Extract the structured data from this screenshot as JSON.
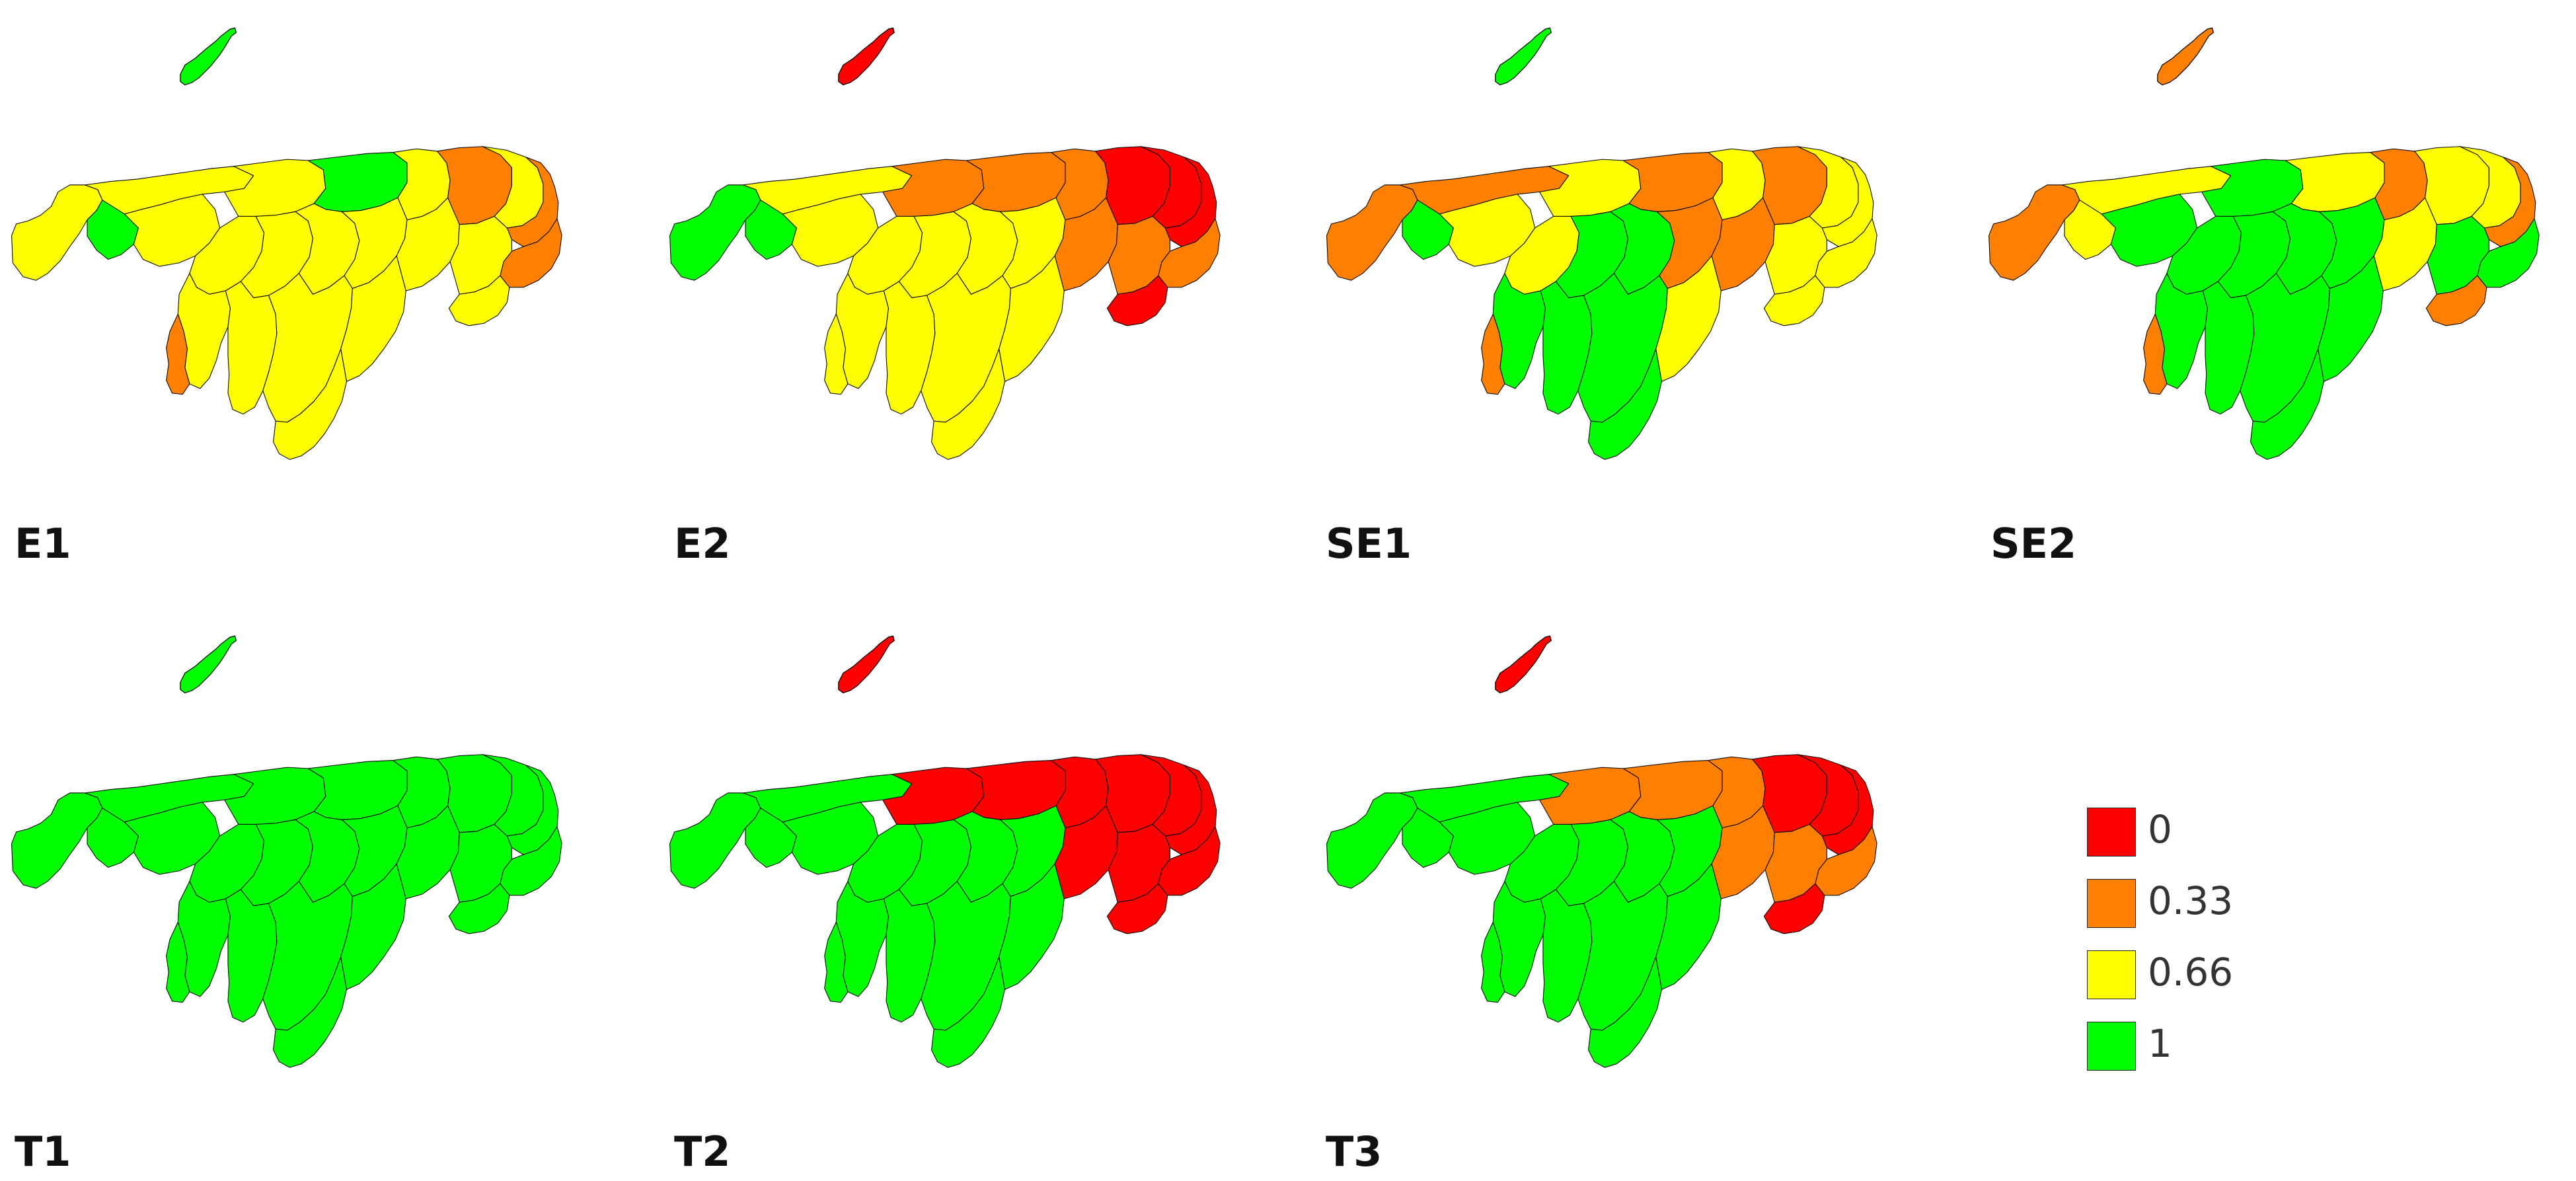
{
  "colors": {
    "0": "#ff0000",
    "0.33": "#ff8000",
    "0.66": "#ffff00",
    "1": "#00ff00",
    "border": "#000000",
    "background": "#ffffff"
  },
  "panels": [
    {
      "label": "E1",
      "island": "1",
      "regions": [
        "0.66",
        "0.66",
        "1",
        "0.66",
        "0.66",
        "1",
        "0.66",
        "0.33",
        "0.66",
        "0.33",
        "0.33",
        "0.66",
        "0.66",
        "0.66",
        "0.66",
        "0.66",
        "0.66",
        "0.66",
        "0.66",
        "0.66",
        "0.66",
        "0.33",
        "0.66",
        "0.66"
      ]
    },
    {
      "label": "E2",
      "island": "0",
      "regions": [
        "1",
        "0.66",
        "1",
        "0.66",
        "0.33",
        "0.33",
        "0.33",
        "0",
        "0",
        "0",
        "0.33",
        "0.66",
        "0.66",
        "0.66",
        "0.66",
        "0.33",
        "0.33",
        "0",
        "0.66",
        "0.66",
        "0.66",
        "0.66",
        "0.66",
        "0.66"
      ]
    },
    {
      "label": "SE1",
      "island": "1",
      "regions": [
        "0.33",
        "0.33",
        "1",
        "0.66",
        "0.66",
        "0.33",
        "0.66",
        "0.33",
        "0.66",
        "0.66",
        "0.66",
        "0.66",
        "1",
        "1",
        "0.33",
        "0.33",
        "0.66",
        "0.66",
        "1",
        "1",
        "1",
        "0.33",
        "0.66",
        "1"
      ]
    },
    {
      "label": "SE2",
      "island": "0.33",
      "regions": [
        "0.33",
        "0.66",
        "0.66",
        "1",
        "1",
        "0.66",
        "0.33",
        "0.66",
        "0.66",
        "0.33",
        "1",
        "1",
        "1",
        "1",
        "1",
        "0.66",
        "1",
        "0.33",
        "1",
        "1",
        "1",
        "0.33",
        "1",
        "1"
      ]
    },
    {
      "label": "T1",
      "island": "1",
      "regions": [
        "1",
        "1",
        "1",
        "1",
        "1",
        "1",
        "1",
        "1",
        "1",
        "1",
        "1",
        "1",
        "1",
        "1",
        "1",
        "1",
        "1",
        "1",
        "1",
        "1",
        "1",
        "1",
        "1",
        "1"
      ]
    },
    {
      "label": "T2",
      "island": "0",
      "regions": [
        "1",
        "1",
        "1",
        "1",
        "0",
        "0",
        "0",
        "0",
        "0",
        "0",
        "0",
        "1",
        "1",
        "1",
        "1",
        "0",
        "0",
        "0",
        "1",
        "1",
        "1",
        "1",
        "1",
        "1"
      ]
    },
    {
      "label": "T3",
      "island": "0",
      "regions": [
        "1",
        "1",
        "1",
        "1",
        "0.33",
        "0.33",
        "0.33",
        "0",
        "0",
        "0",
        "0.33",
        "1",
        "1",
        "1",
        "1",
        "0.33",
        "0.33",
        "0",
        "1",
        "1",
        "1",
        "1",
        "1",
        "1"
      ]
    }
  ],
  "legend": [
    {
      "label": "0",
      "value": "0"
    },
    {
      "label": "0.33",
      "value": "0.33"
    },
    {
      "label": "0.66",
      "value": "0.66"
    },
    {
      "label": "1",
      "value": "1"
    }
  ]
}
